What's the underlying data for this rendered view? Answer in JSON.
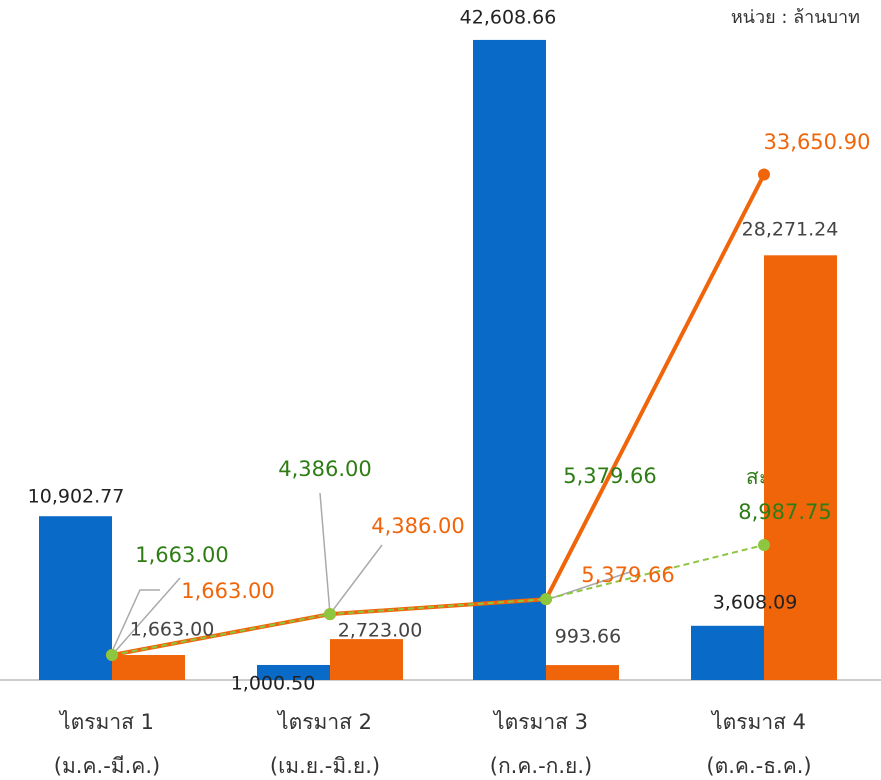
{
  "chart_data": {
    "type": "bar",
    "unit_label": "หน่วย : ล้านบาท",
    "categories": [
      [
        "ไตรมาส 1",
        "(ม.ค.-มี.ค.)"
      ],
      [
        "ไตรมาส 2",
        "(เม.ย.-มิ.ย.)"
      ],
      [
        "ไตรมาส 3",
        "(ก.ค.-ก.ย.)"
      ],
      [
        "ไตรมาส 4",
        "(ต.ค.-ธ.ค.)"
      ]
    ],
    "ylim": [
      0,
      45000
    ],
    "series": [
      {
        "type": "bar",
        "color": "#0a6ac8",
        "label_color": "#222",
        "values": [
          10902.77,
          1000.5,
          42608.66,
          3608.09
        ],
        "value_labels": [
          "10,902.77",
          "1,000.50",
          "42,608.66",
          "3,608.09"
        ]
      },
      {
        "type": "bar",
        "color": "#f0650a",
        "label_color": "#444",
        "values": [
          1663.0,
          2723.0,
          993.66,
          28271.24
        ],
        "value_labels": [
          "1,663.00",
          "2,723.00",
          "993.66",
          "28,271.24"
        ]
      },
      {
        "type": "line",
        "color": "#f0650a",
        "label_color": "#f0650a",
        "values": [
          1663.0,
          4386.0,
          5379.66,
          33650.9
        ],
        "value_labels": [
          "1,663.00",
          "4,386.00",
          "5,379.66",
          "33,650.90"
        ]
      },
      {
        "type": "line",
        "dashed": true,
        "color": "#8dc63f",
        "label_color": "#2e7d14",
        "values": [
          1663.0,
          4386.0,
          5379.66,
          8987.75
        ],
        "value_labels": [
          "1,663.00",
          "4,386.00",
          "5,379.66",
          "8,987.75"
        ]
      }
    ],
    "annotation": "สะสมทั้งปี"
  }
}
